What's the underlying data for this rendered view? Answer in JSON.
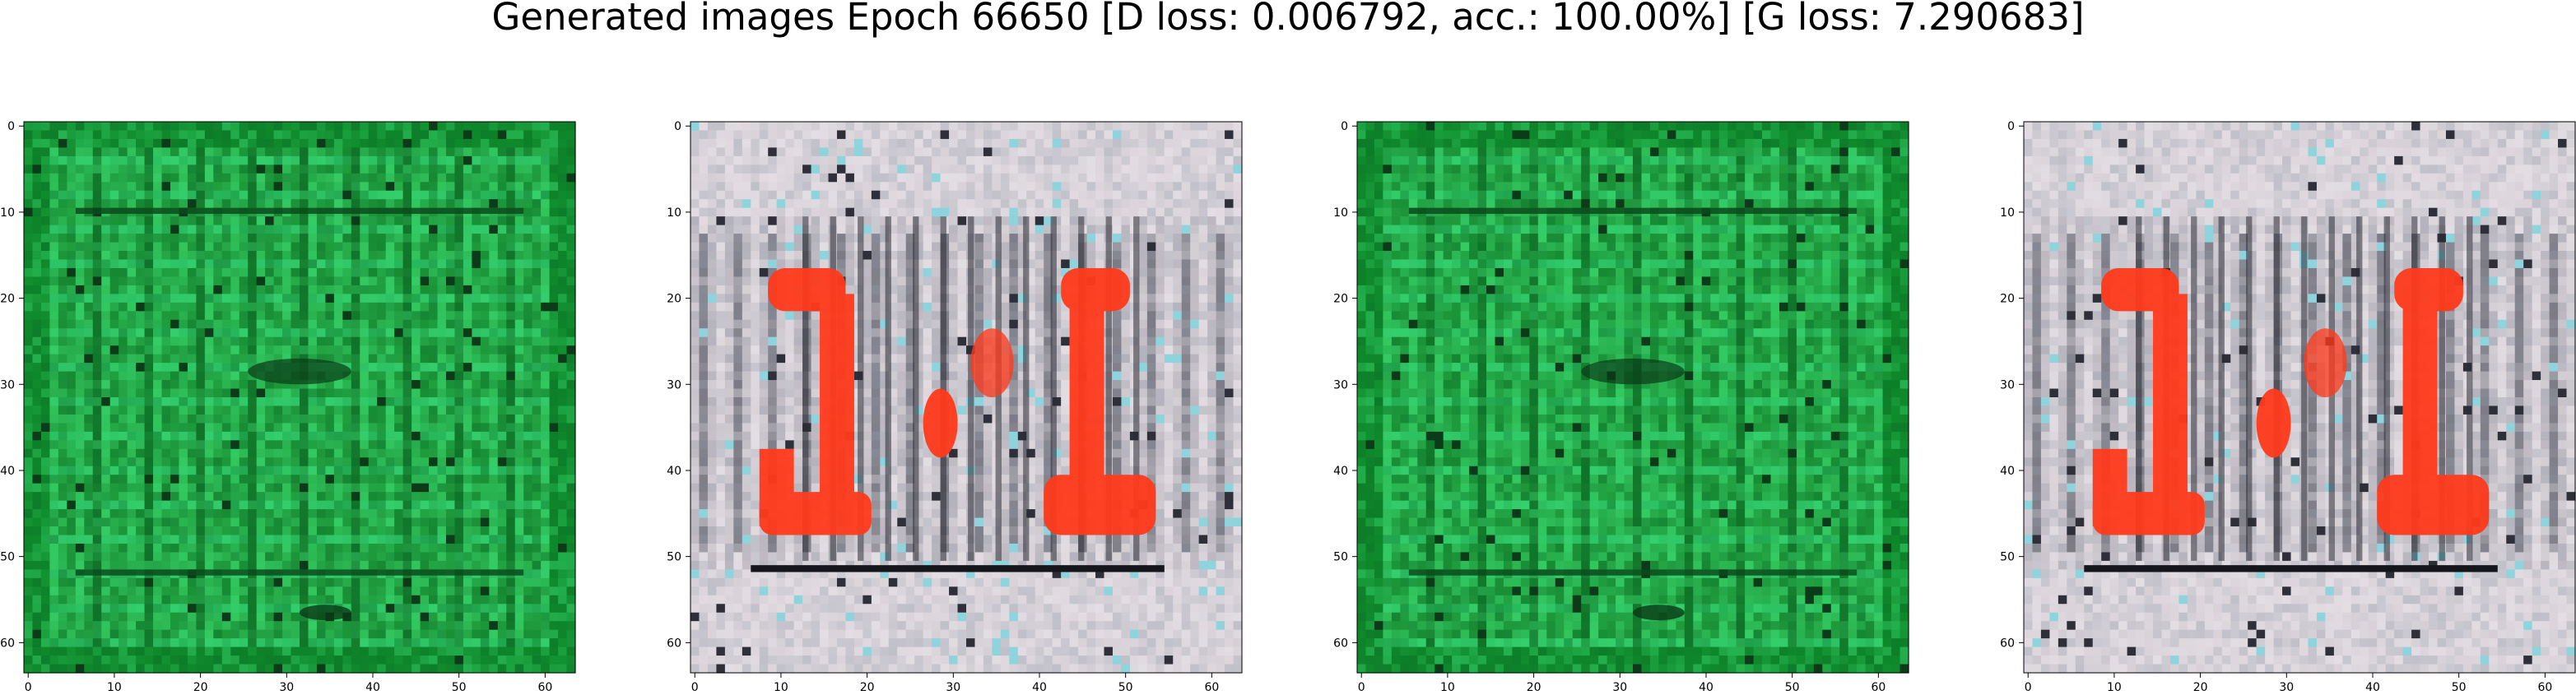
{
  "figure": {
    "suptitle": "Generated images Epoch 66650 [D loss: 0.006792, acc.: 100.00%] [G loss: 7.290683]"
  },
  "panels": [
    {
      "kind": "green-pattern-sample",
      "bg_color": "#1f9a3a"
    },
    {
      "kind": "red-letters-sample",
      "bg_color": "#d9d3d8",
      "accent_color": "#ff3a1c"
    },
    {
      "kind": "green-pattern-sample",
      "bg_color": "#1f9a3a"
    },
    {
      "kind": "red-letters-sample",
      "bg_color": "#d9d3d8",
      "accent_color": "#ff3a1c"
    }
  ],
  "axis": {
    "xticks": [
      "0",
      "10",
      "20",
      "30",
      "40",
      "50",
      "60"
    ],
    "yticks": [
      "0",
      "10",
      "20",
      "30",
      "40",
      "50",
      "60"
    ]
  }
}
